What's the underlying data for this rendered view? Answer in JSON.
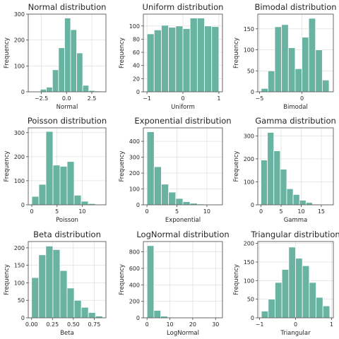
{
  "chart_data": [
    {
      "type": "bar",
      "title": "Normal distribution",
      "xlabel": "Normal",
      "ylabel": "Frequency",
      "bins": [
        [
          -3.2,
          -2.6
        ],
        [
          -2.6,
          -2.0
        ],
        [
          -2.0,
          -1.4
        ],
        [
          -1.4,
          -0.8
        ],
        [
          -0.8,
          -0.2
        ],
        [
          -0.2,
          0.4
        ],
        [
          0.4,
          1.0
        ],
        [
          1.0,
          1.6
        ],
        [
          1.6,
          2.2
        ],
        [
          2.2,
          2.8
        ],
        [
          2.8,
          3.4
        ]
      ],
      "values": [
        2,
        10,
        18,
        85,
        170,
        285,
        240,
        150,
        25,
        5,
        3
      ],
      "xlim": [
        -3.8,
        3.9
      ],
      "ylim": [
        0,
        300
      ],
      "xticks": [
        -2.5,
        0.0,
        2.5
      ],
      "xtick_labels": [
        "−2.5",
        "0.0",
        "2.5"
      ],
      "yticks": [
        0,
        100,
        200,
        300
      ],
      "ytick_labels": [
        "0",
        "100",
        "200",
        "300"
      ],
      "grid": true
    },
    {
      "type": "bar",
      "title": "Uniform distribution",
      "xlabel": "Uniform",
      "ylabel": "Frequency",
      "bins": [
        [
          -1.0,
          -0.8
        ],
        [
          -0.8,
          -0.6
        ],
        [
          -0.6,
          -0.4
        ],
        [
          -0.4,
          -0.2
        ],
        [
          -0.2,
          0.0
        ],
        [
          0.0,
          0.2
        ],
        [
          0.2,
          0.4
        ],
        [
          0.4,
          0.6
        ],
        [
          0.6,
          0.8
        ],
        [
          0.8,
          1.0
        ]
      ],
      "values": [
        88,
        94,
        101,
        98,
        100,
        96,
        112,
        112,
        100,
        99
      ],
      "xlim": [
        -1.1,
        1.1
      ],
      "ylim": [
        0,
        118
      ],
      "xticks": [
        -1,
        0,
        1
      ],
      "xtick_labels": [
        "−1",
        "0",
        "1"
      ],
      "yticks": [
        0,
        20,
        40,
        60,
        80,
        100
      ],
      "ytick_labels": [
        "0",
        "20",
        "40",
        "60",
        "80",
        "100"
      ],
      "grid": true
    },
    {
      "type": "bar",
      "title": "Bimodal distribution",
      "xlabel": "Bimodal",
      "ylabel": "Frequency",
      "bins": [
        [
          -4.8,
          -4.0
        ],
        [
          -4.0,
          -3.2
        ],
        [
          -3.2,
          -2.4
        ],
        [
          -2.4,
          -1.6
        ],
        [
          -1.6,
          -0.8
        ],
        [
          -0.8,
          0.0
        ],
        [
          0.0,
          0.8
        ],
        [
          0.8,
          1.6
        ],
        [
          1.6,
          2.4
        ],
        [
          2.4,
          3.2
        ]
      ],
      "values": [
        8,
        50,
        155,
        160,
        105,
        55,
        130,
        175,
        100,
        28
      ],
      "xlim": [
        -5.2,
        3.7
      ],
      "ylim": [
        0,
        185
      ],
      "xticks": [
        -5,
        0
      ],
      "xtick_labels": [
        "−5",
        "0"
      ],
      "yticks": [
        0,
        50,
        100,
        150
      ],
      "ytick_labels": [
        "0",
        "50",
        "100",
        "150"
      ],
      "grid": true
    },
    {
      "type": "bar",
      "title": "Poisson distribution",
      "xlabel": "Poisson",
      "ylabel": "Frequency",
      "bins": [
        [
          0,
          1.4
        ],
        [
          1.4,
          2.8
        ],
        [
          2.8,
          4.2
        ],
        [
          4.2,
          5.6
        ],
        [
          5.6,
          7.0
        ],
        [
          7.0,
          8.4
        ],
        [
          8.4,
          9.8
        ],
        [
          9.8,
          11.2
        ],
        [
          11.2,
          12.6
        ],
        [
          12.6,
          14.0
        ]
      ],
      "values": [
        35,
        85,
        305,
        165,
        160,
        180,
        40,
        15,
        5,
        2
      ],
      "xlim": [
        -0.7,
        14.7
      ],
      "ylim": [
        0,
        320
      ],
      "xticks": [
        0,
        5,
        10
      ],
      "xtick_labels": [
        "0",
        "5",
        "10"
      ],
      "yticks": [
        0,
        100,
        200,
        300
      ],
      "ytick_labels": [
        "0",
        "100",
        "200",
        "300"
      ],
      "grid": true
    },
    {
      "type": "bar",
      "title": "Exponential distribution",
      "xlabel": "Exponential",
      "ylabel": "Frequency",
      "bins": [
        [
          0,
          1.2
        ],
        [
          1.2,
          2.4
        ],
        [
          2.4,
          3.6
        ],
        [
          3.6,
          4.8
        ],
        [
          4.8,
          6.0
        ],
        [
          6.0,
          7.2
        ],
        [
          7.2,
          8.4
        ],
        [
          8.4,
          9.6
        ],
        [
          9.6,
          10.8
        ],
        [
          10.8,
          12.0
        ]
      ],
      "values": [
        460,
        240,
        130,
        80,
        40,
        20,
        10,
        5,
        3,
        2
      ],
      "xlim": [
        -0.6,
        12.6
      ],
      "ylim": [
        0,
        485
      ],
      "xticks": [
        0,
        5,
        10
      ],
      "xtick_labels": [
        "0",
        "5",
        "10"
      ],
      "yticks": [
        0,
        100,
        200,
        300,
        400
      ],
      "ytick_labels": [
        "0",
        "100",
        "200",
        "300",
        "400"
      ],
      "grid": true
    },
    {
      "type": "bar",
      "title": "Gamma distribution",
      "xlabel": "Gamma",
      "ylabel": "Frequency",
      "bins": [
        [
          0,
          1.6
        ],
        [
          1.6,
          3.2
        ],
        [
          3.2,
          4.8
        ],
        [
          4.8,
          6.4
        ],
        [
          6.4,
          8.0
        ],
        [
          8.0,
          9.6
        ],
        [
          9.6,
          11.2
        ],
        [
          11.2,
          12.8
        ],
        [
          12.8,
          14.4
        ],
        [
          14.4,
          16.0
        ]
      ],
      "values": [
        195,
        315,
        235,
        155,
        70,
        45,
        20,
        10,
        3,
        2
      ],
      "xlim": [
        -0.8,
        18.0
      ],
      "ylim": [
        0,
        335
      ],
      "xticks": [
        0,
        5,
        10,
        15
      ],
      "xtick_labels": [
        "0",
        "5",
        "10",
        "15"
      ],
      "yticks": [
        0,
        100,
        200,
        300
      ],
      "ytick_labels": [
        "0",
        "100",
        "200",
        "300"
      ],
      "grid": true
    },
    {
      "type": "bar",
      "title": "Beta distribution",
      "xlabel": "Beta",
      "ylabel": "Frequency",
      "bins": [
        [
          0,
          0.085
        ],
        [
          0.085,
          0.17
        ],
        [
          0.17,
          0.255
        ],
        [
          0.255,
          0.34
        ],
        [
          0.34,
          0.425
        ],
        [
          0.425,
          0.51
        ],
        [
          0.51,
          0.595
        ],
        [
          0.595,
          0.68
        ],
        [
          0.68,
          0.765
        ],
        [
          0.765,
          0.85
        ]
      ],
      "values": [
        115,
        180,
        205,
        195,
        135,
        85,
        50,
        30,
        15,
        5
      ],
      "xlim": [
        -0.04,
        0.89
      ],
      "ylim": [
        0,
        218
      ],
      "xticks": [
        0.0,
        0.25,
        0.5,
        0.75
      ],
      "xtick_labels": [
        "0.00",
        "0.25",
        "0.50",
        "0.75"
      ],
      "yticks": [
        0,
        50,
        100,
        150,
        200
      ],
      "ytick_labels": [
        "0",
        "50",
        "100",
        "150",
        "200"
      ],
      "grid": true
    },
    {
      "type": "bar",
      "title": "LogNormal distribution",
      "xlabel": "LogNormal",
      "ylabel": "Frequency",
      "bins": [
        [
          0,
          3
        ],
        [
          3,
          6
        ],
        [
          6,
          9
        ],
        [
          9,
          12
        ],
        [
          12,
          15
        ],
        [
          15,
          18
        ],
        [
          18,
          21
        ],
        [
          21,
          24
        ],
        [
          24,
          27
        ],
        [
          27,
          30
        ]
      ],
      "values": [
        875,
        90,
        20,
        8,
        3,
        2,
        1,
        0,
        0,
        1
      ],
      "xlim": [
        -1.6,
        33.0
      ],
      "ylim": [
        0,
        925
      ],
      "xticks": [
        0,
        10,
        20,
        30
      ],
      "xtick_labels": [
        "0",
        "10",
        "20",
        "30"
      ],
      "yticks": [
        0,
        200,
        400,
        600,
        800
      ],
      "ytick_labels": [
        "0",
        "200",
        "400",
        "600",
        "800"
      ],
      "grid": true
    },
    {
      "type": "bar",
      "title": "Triangular distribution",
      "xlabel": "Triangular",
      "ylabel": "Frequency",
      "bins": [
        [
          -0.95,
          -0.76
        ],
        [
          -0.76,
          -0.57
        ],
        [
          -0.57,
          -0.38
        ],
        [
          -0.38,
          -0.19
        ],
        [
          -0.19,
          0.0
        ],
        [
          0.0,
          0.19
        ],
        [
          0.19,
          0.38
        ],
        [
          0.38,
          0.57
        ],
        [
          0.57,
          0.76
        ],
        [
          0.76,
          0.95
        ]
      ],
      "values": [
        18,
        50,
        95,
        130,
        190,
        160,
        140,
        95,
        55,
        32
      ],
      "xlim": [
        -1.05,
        1.05
      ],
      "ylim": [
        0,
        205
      ],
      "xticks": [
        -1,
        0,
        1
      ],
      "xtick_labels": [
        "−1",
        "0",
        "1"
      ],
      "yticks": [
        0,
        50,
        100,
        150,
        200
      ],
      "ytick_labels": [
        "0",
        "50",
        "100",
        "150",
        "200"
      ],
      "grid": true
    }
  ]
}
